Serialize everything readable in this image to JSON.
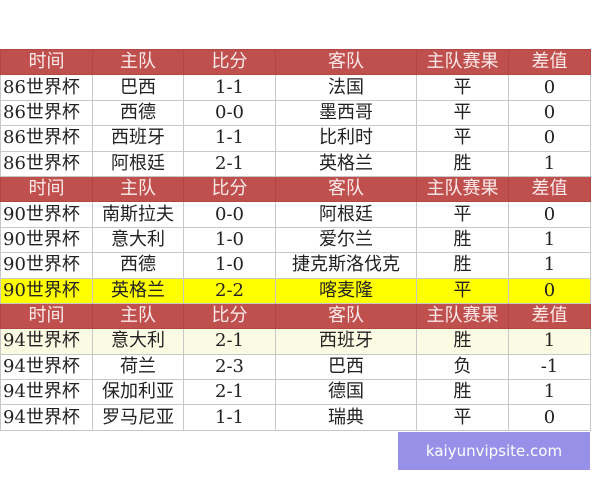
{
  "headers": [
    "时间",
    "主队",
    "比分",
    "客队",
    "主队赛果",
    "差值"
  ],
  "sections": [
    {
      "rows": [
        [
          "86世界杯",
          "巴西",
          "1-1",
          "法国",
          "平",
          "0"
        ],
        [
          "86世界杯",
          "西德",
          "0-0",
          "墨西哥",
          "平",
          "0"
        ],
        [
          "86世界杯",
          "西班牙",
          "1-1",
          "比利时",
          "平",
          "0"
        ],
        [
          "86世界杯",
          "阿根廷",
          "2-1",
          "英格兰",
          "胜",
          "1"
        ]
      ]
    },
    {
      "rows": [
        [
          "90世界杯",
          "南斯拉夫",
          "0-0",
          "阿根廷",
          "平",
          "0"
        ],
        [
          "90世界杯",
          "意大利",
          "1-0",
          "爱尔兰",
          "胜",
          "1"
        ],
        [
          "90世界杯",
          "西德",
          "1-0",
          "捷克斯洛伐克",
          "胜",
          "1"
        ],
        [
          "90世界杯",
          "英格兰",
          "2-2",
          "喀麦隆",
          "平",
          "0"
        ]
      ]
    },
    {
      "rows": [
        [
          "94世界杯",
          "意大利",
          "2-1",
          "西班牙",
          "胜",
          "1"
        ],
        [
          "94世界杯",
          "荷兰",
          "2-3",
          "巴西",
          "负",
          "-1"
        ],
        [
          "94世界杯",
          "保加利亚",
          "2-1",
          "德国",
          "胜",
          "1"
        ],
        [
          "94世界杯",
          "罗马尼亚",
          "1-1",
          "瑞典",
          "平",
          "0"
        ]
      ]
    }
  ],
  "highlight_colors": {
    "header": "#c0504d",
    "highlight_row": "#ffff00"
  },
  "watermark": "kaiyunvipsite.com"
}
